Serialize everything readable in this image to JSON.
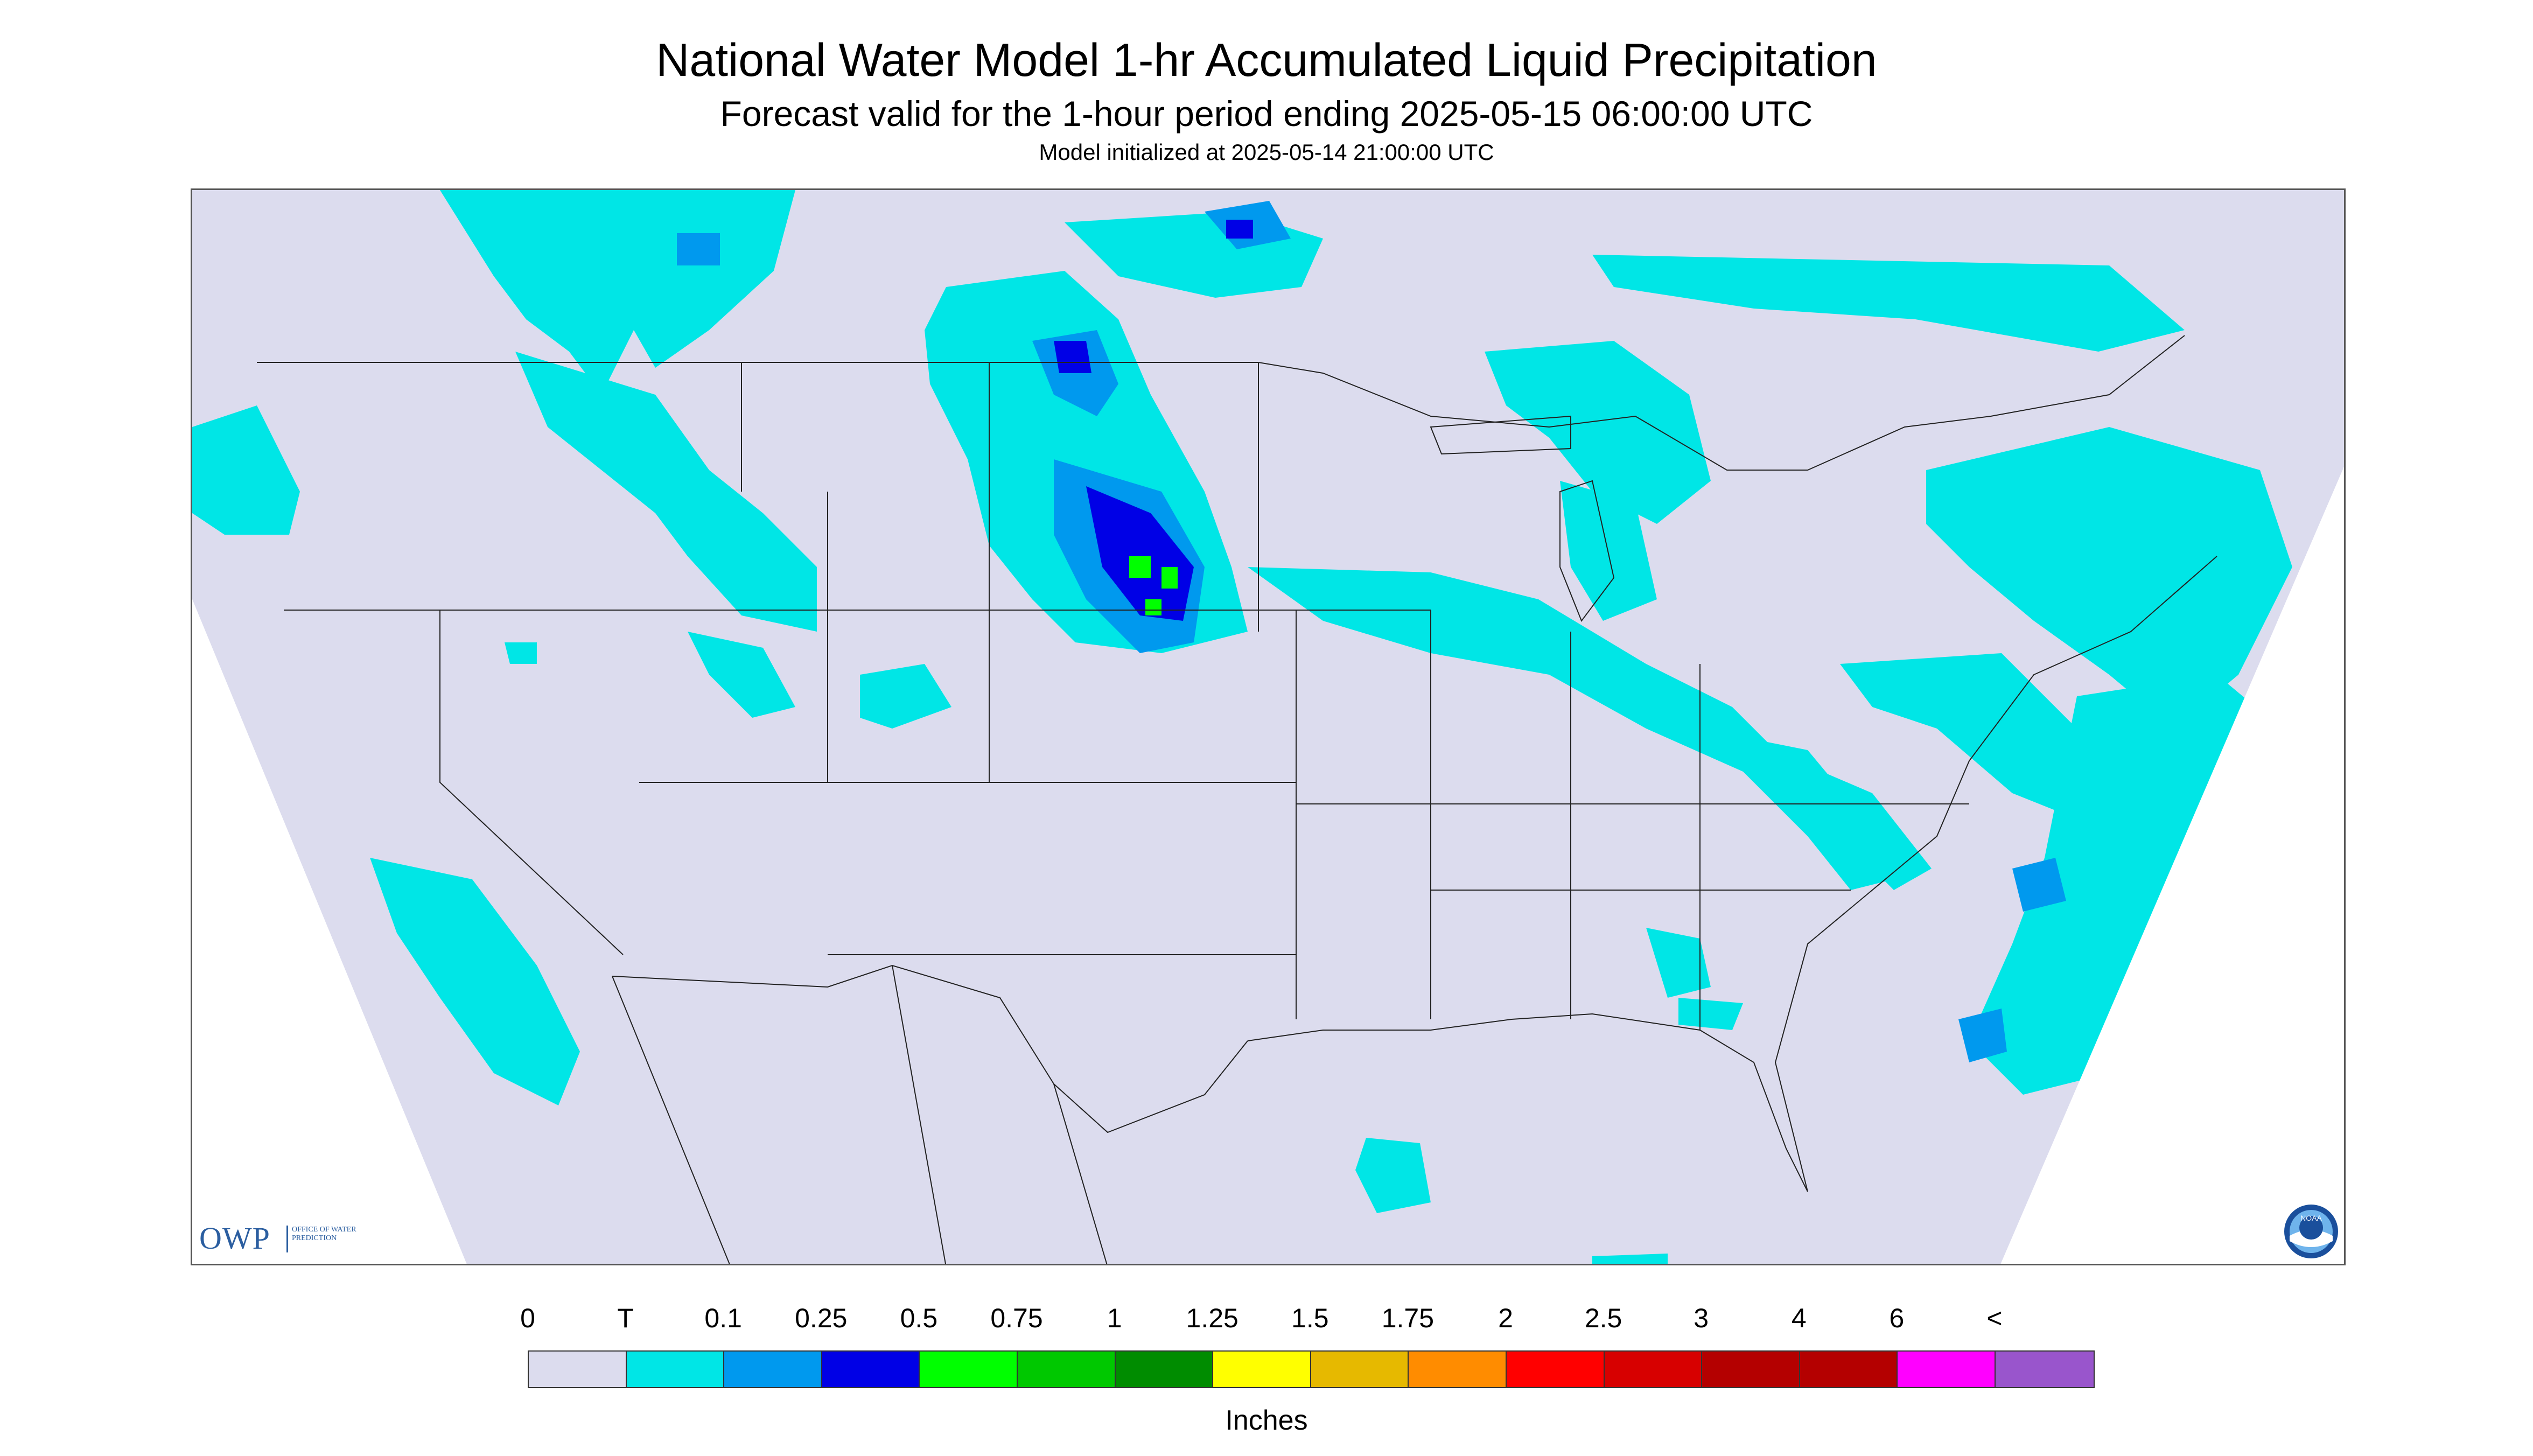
{
  "title": "National Water Model 1-hr Accumulated Liquid Precipitation",
  "subtitle": "Forecast valid for the 1-hour period ending 2025-05-15 06:00:00 UTC",
  "initialized": "Model initialized at 2025-05-14 21:00:00 UTC",
  "legend": {
    "labels": [
      "0",
      "T",
      "0.1",
      "0.25",
      "0.5",
      "0.75",
      "1",
      "1.25",
      "1.5",
      "1.75",
      "2",
      "2.5",
      "3",
      "4",
      "6",
      "<"
    ],
    "colors": [
      "#dcdcee",
      "#00e6e6",
      "#0099ee",
      "#0000e6",
      "#00ff00",
      "#00c800",
      "#008c00",
      "#ffff00",
      "#e6b900",
      "#ff8c00",
      "#ff0000",
      "#d70000",
      "#b40000",
      "#b40000",
      "#ff00ff",
      "#9955cc"
    ],
    "units": "Inches"
  },
  "logos": {
    "owp_text": "OWP",
    "owp_subtext": "Office of Water Prediction",
    "noaa_text": "NOAA"
  },
  "map": {
    "background_color": "#dcdcee",
    "outside_color": "#ffffff",
    "light_precip_color": "#00e6e6",
    "moderate_precip_color": "#0099ee",
    "heavy_precip_color": "#0000e6",
    "very_heavy_precip_color": "#00ff00",
    "boundary_color": "#222222"
  }
}
